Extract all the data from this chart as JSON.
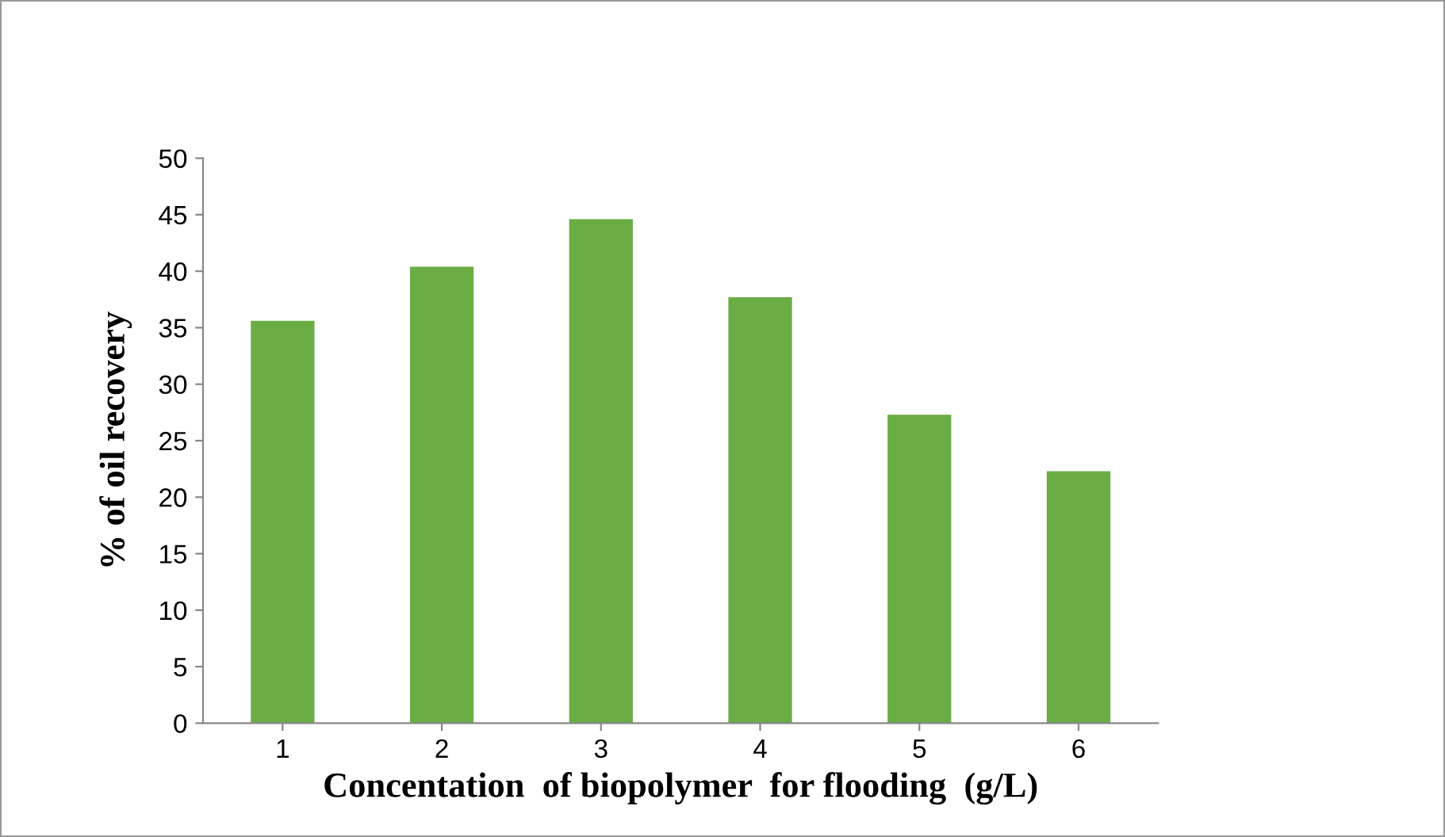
{
  "chart_data": {
    "type": "bar",
    "xlabel": "Concentation  of biopolymer  for flooding  (g/L)",
    "ylabel": "% of oil recovery",
    "categories": [
      "1",
      "2",
      "3",
      "4",
      "5",
      "6"
    ],
    "values": [
      35.6,
      40.4,
      44.6,
      37.7,
      27.3,
      22.3
    ],
    "color": "#6aad45",
    "ylim": [
      0,
      50
    ],
    "yticks": [
      0,
      5,
      10,
      15,
      20,
      25,
      30,
      35,
      40,
      45,
      50
    ],
    "grid": false,
    "legend": false
  }
}
